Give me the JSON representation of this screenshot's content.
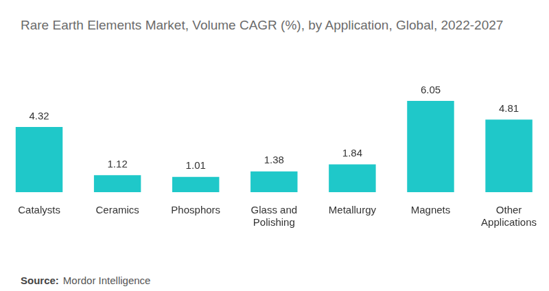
{
  "chart_data": {
    "type": "bar",
    "title": "Rare Earth Elements Market, Volume CAGR (%), by Application, Global, 2022-2027",
    "categories": [
      "Catalysts",
      "Ceramics",
      "Phosphors",
      "Glass and Polishing",
      "Metallurgy",
      "Magnets",
      "Other Applications"
    ],
    "values": [
      4.32,
      1.12,
      1.01,
      1.38,
      1.84,
      6.05,
      4.81
    ],
    "color": "#1fc8c9",
    "grid": false,
    "data_labels": true,
    "tick_labels": "x",
    "source_label": "Source:",
    "source": "Mordor Intelligence"
  }
}
